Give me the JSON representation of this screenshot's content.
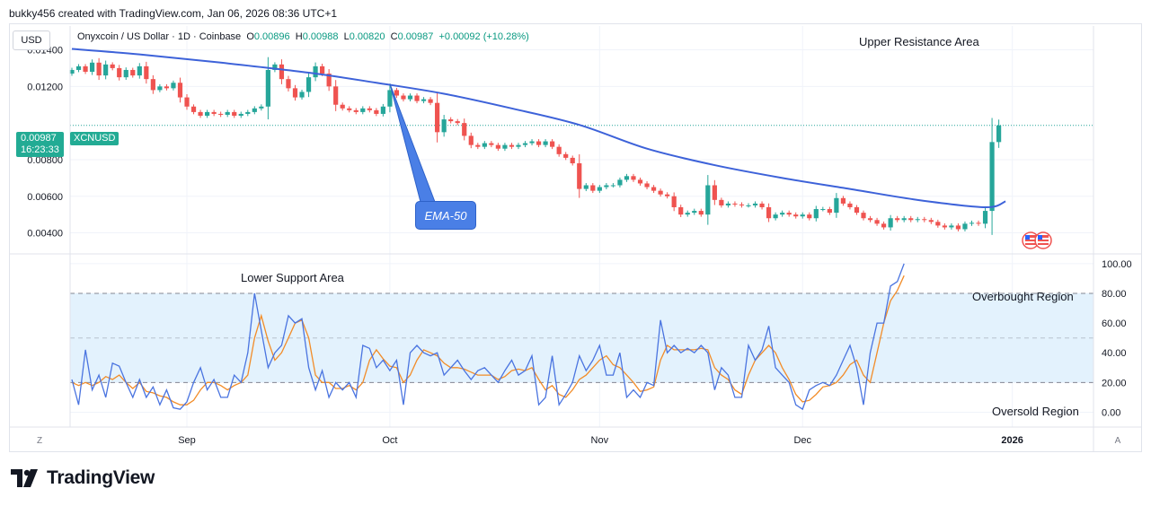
{
  "header": {
    "text": "bukky456 created with TradingView.com, Jan 06, 2026 08:36 UTC+1"
  },
  "currency_button": "USD",
  "legend": {
    "symbol": "Onyxcoin / US Dollar · 1D · Coinbase",
    "open_label": "O",
    "open": "0.00896",
    "high_label": "H",
    "high": "0.00988",
    "low_label": "L",
    "low": "0.00820",
    "close_label": "C",
    "close": "0.00987",
    "change": "+0.00092 (+10.28%)"
  },
  "last_price": {
    "value": "0.00987",
    "countdown": "16:23:33",
    "symbol": "XCNUSD"
  },
  "annotations": {
    "upper": "Upper Resistance Area",
    "lower": "Lower Support Area",
    "ema": "EMA-50",
    "overbought": "Overbought Region",
    "oversold": "Oversold Region"
  },
  "corner_buttons": {
    "left": "Z",
    "right": "A"
  },
  "brand": {
    "name": "TradingView"
  },
  "colors": {
    "up": "#26a69a",
    "down": "#ef5350",
    "ema": "#3d62d9",
    "k_line": "#4a74e0",
    "d_line": "#f28c28",
    "band_fill": "#e3f2fd",
    "grid": "#f0f3fa",
    "badge": "#22ab94"
  },
  "chart_data": [
    {
      "type": "candlestick",
      "title": "Onyxcoin / US Dollar · 1D · Coinbase",
      "y_ticks": [
        "0.01400",
        "0.01200",
        "0.00800",
        "0.00600",
        "0.00400"
      ],
      "y_tick_values": [
        0.014,
        0.012,
        0.008,
        0.006,
        0.004
      ],
      "ylim": [
        0.0029,
        0.0153
      ],
      "x_ticks": [
        "Sep",
        "Oct",
        "Nov",
        "Dec",
        "2026"
      ],
      "x_tick_index": [
        17,
        47,
        78,
        108,
        139
      ],
      "grid": true,
      "close": [
        0.0129,
        0.0131,
        0.0128,
        0.0133,
        0.0126,
        0.0132,
        0.013,
        0.0125,
        0.0129,
        0.0126,
        0.0131,
        0.0124,
        0.0118,
        0.012,
        0.0119,
        0.0122,
        0.0114,
        0.0109,
        0.0106,
        0.0104,
        0.0106,
        0.0105,
        0.01045,
        0.0106,
        0.0104,
        0.0105,
        0.0106,
        0.0108,
        0.0109,
        0.0129,
        0.0132,
        0.0124,
        0.0119,
        0.0114,
        0.0117,
        0.0125,
        0.0131,
        0.0127,
        0.012,
        0.011,
        0.0108,
        0.0107,
        0.0106,
        0.0108,
        0.0107,
        0.0105,
        0.0109,
        0.0118,
        0.0115,
        0.0113,
        0.0115,
        0.0112,
        0.0113,
        0.0111,
        0.0095,
        0.0102,
        0.0101,
        0.01,
        0.0093,
        0.0088,
        0.0087,
        0.0089,
        0.0088,
        0.0086,
        0.0088,
        0.0087,
        0.0088,
        0.0089,
        0.009,
        0.0088,
        0.009,
        0.0087,
        0.0083,
        0.0081,
        0.0078,
        0.0064,
        0.0066,
        0.0063,
        0.0065,
        0.0066,
        0.0066,
        0.0069,
        0.0071,
        0.0069,
        0.0067,
        0.0065,
        0.0063,
        0.0061,
        0.006,
        0.0054,
        0.005,
        0.0051,
        0.0052,
        0.005,
        0.0066,
        0.0058,
        0.0055,
        0.0056,
        0.00555,
        0.0055,
        0.0055,
        0.0056,
        0.0054,
        0.0048,
        0.005,
        0.0051,
        0.005,
        0.0049,
        0.005,
        0.0048,
        0.0053,
        0.0053,
        0.0051,
        0.0059,
        0.0056,
        0.0054,
        0.0051,
        0.0048,
        0.0047,
        0.0045,
        0.0043,
        0.0048,
        0.0047,
        0.0048,
        0.0047,
        0.00475,
        0.0047,
        0.0046,
        0.0044,
        0.0043,
        0.0044,
        0.0042,
        0.0045,
        0.00455,
        0.0045,
        0.0052,
        0.00896,
        0.00987
      ],
      "ema50_points": [
        [
          0,
          0.01405
        ],
        [
          10,
          0.01375
        ],
        [
          22,
          0.0133
        ],
        [
          35,
          0.01275
        ],
        [
          45,
          0.0122
        ],
        [
          55,
          0.0116
        ],
        [
          65,
          0.0108
        ],
        [
          75,
          0.0099
        ],
        [
          85,
          0.0086
        ],
        [
          95,
          0.0077
        ],
        [
          105,
          0.007
        ],
        [
          115,
          0.0064
        ],
        [
          125,
          0.0058
        ],
        [
          135,
          0.0054
        ],
        [
          138,
          0.00572
        ]
      ],
      "last_price_line": 0.00987
    },
    {
      "type": "line",
      "title": "Stochastic",
      "y_ticks": [
        "100.00",
        "80.00",
        "60.00",
        "40.00",
        "20.00",
        "0.00"
      ],
      "y_tick_values": [
        100,
        80,
        60,
        40,
        20,
        0
      ],
      "ylim": [
        -10,
        106
      ],
      "band": [
        20,
        80
      ],
      "mid_line": 50,
      "series": [
        {
          "key": "k",
          "values": [
            22,
            5,
            42,
            15,
            25,
            10,
            33,
            31,
            20,
            10,
            22,
            10,
            17,
            5,
            15,
            3,
            2,
            7,
            20,
            30,
            15,
            22,
            10,
            10,
            25,
            20,
            40,
            80,
            55,
            30,
            40,
            45,
            65,
            60,
            63,
            30,
            15,
            28,
            10,
            20,
            15,
            20,
            10,
            45,
            43,
            30,
            35,
            28,
            35,
            5,
            40,
            45,
            40,
            38,
            40,
            25,
            30,
            35,
            28,
            22,
            28,
            30,
            25,
            20,
            28,
            35,
            25,
            28,
            38,
            5,
            10,
            38,
            5,
            12,
            20,
            38,
            28,
            35,
            45,
            25,
            25,
            40,
            10,
            15,
            10,
            20,
            18,
            62,
            40,
            45,
            40,
            43,
            40,
            45,
            40,
            15,
            30,
            25,
            10,
            10,
            45,
            35,
            42,
            58,
            30,
            25,
            20,
            5,
            2,
            15,
            18,
            20,
            18,
            25,
            35,
            45,
            30,
            5,
            40,
            60,
            60,
            85,
            88,
            100
          ]
        },
        {
          "key": "d",
          "values": [
            20,
            18,
            20,
            18,
            20,
            24,
            22,
            25,
            20,
            16,
            20,
            14,
            13,
            11,
            10,
            7,
            5,
            5,
            8,
            15,
            20,
            20,
            18,
            15,
            18,
            20,
            25,
            50,
            65,
            48,
            35,
            40,
            50,
            60,
            62,
            50,
            25,
            20,
            20,
            16,
            16,
            18,
            15,
            20,
            35,
            42,
            36,
            31,
            30,
            20,
            25,
            35,
            42,
            40,
            38,
            33,
            30,
            30,
            29,
            27,
            25,
            25,
            25,
            22,
            24,
            28,
            29,
            28,
            30,
            22,
            15,
            18,
            12,
            10,
            15,
            22,
            25,
            30,
            35,
            38,
            32,
            30,
            25,
            20,
            14,
            15,
            17,
            35,
            45,
            42,
            42,
            42,
            42,
            43,
            42,
            30,
            25,
            22,
            15,
            12,
            25,
            35,
            40,
            45,
            40,
            30,
            22,
            12,
            7,
            8,
            12,
            17,
            18,
            20,
            25,
            32,
            35,
            25,
            20,
            40,
            60,
            75,
            82,
            92
          ]
        }
      ]
    }
  ]
}
